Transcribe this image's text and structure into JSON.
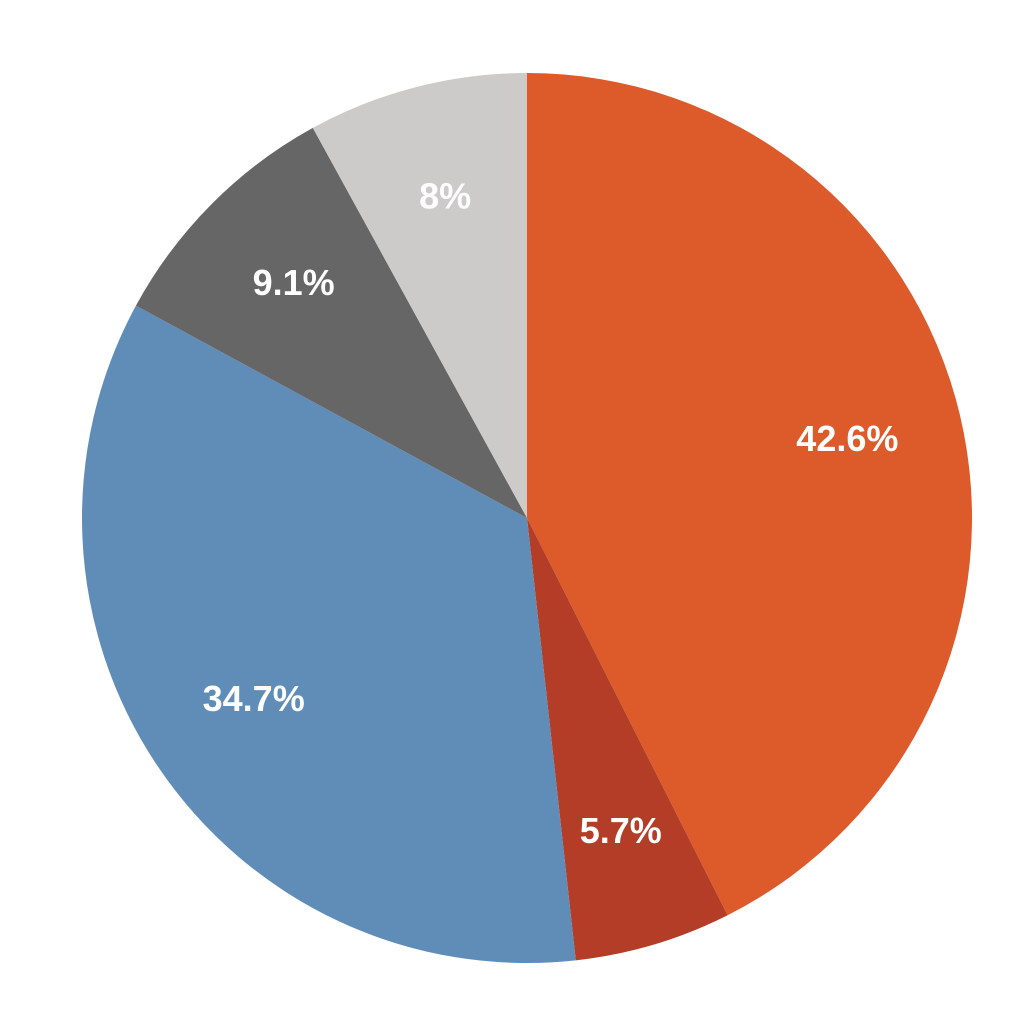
{
  "chart_data": {
    "type": "pie",
    "values": [
      42.6,
      5.7,
      34.7,
      9.1,
      8
    ],
    "value_labels": [
      "42.6%",
      "5.7%",
      "34.7%",
      "9.1%",
      "8%"
    ],
    "colors": [
      "#dd5a2b",
      "#b33d26",
      "#5f8db8",
      "#666666",
      "#cccbc9"
    ]
  }
}
